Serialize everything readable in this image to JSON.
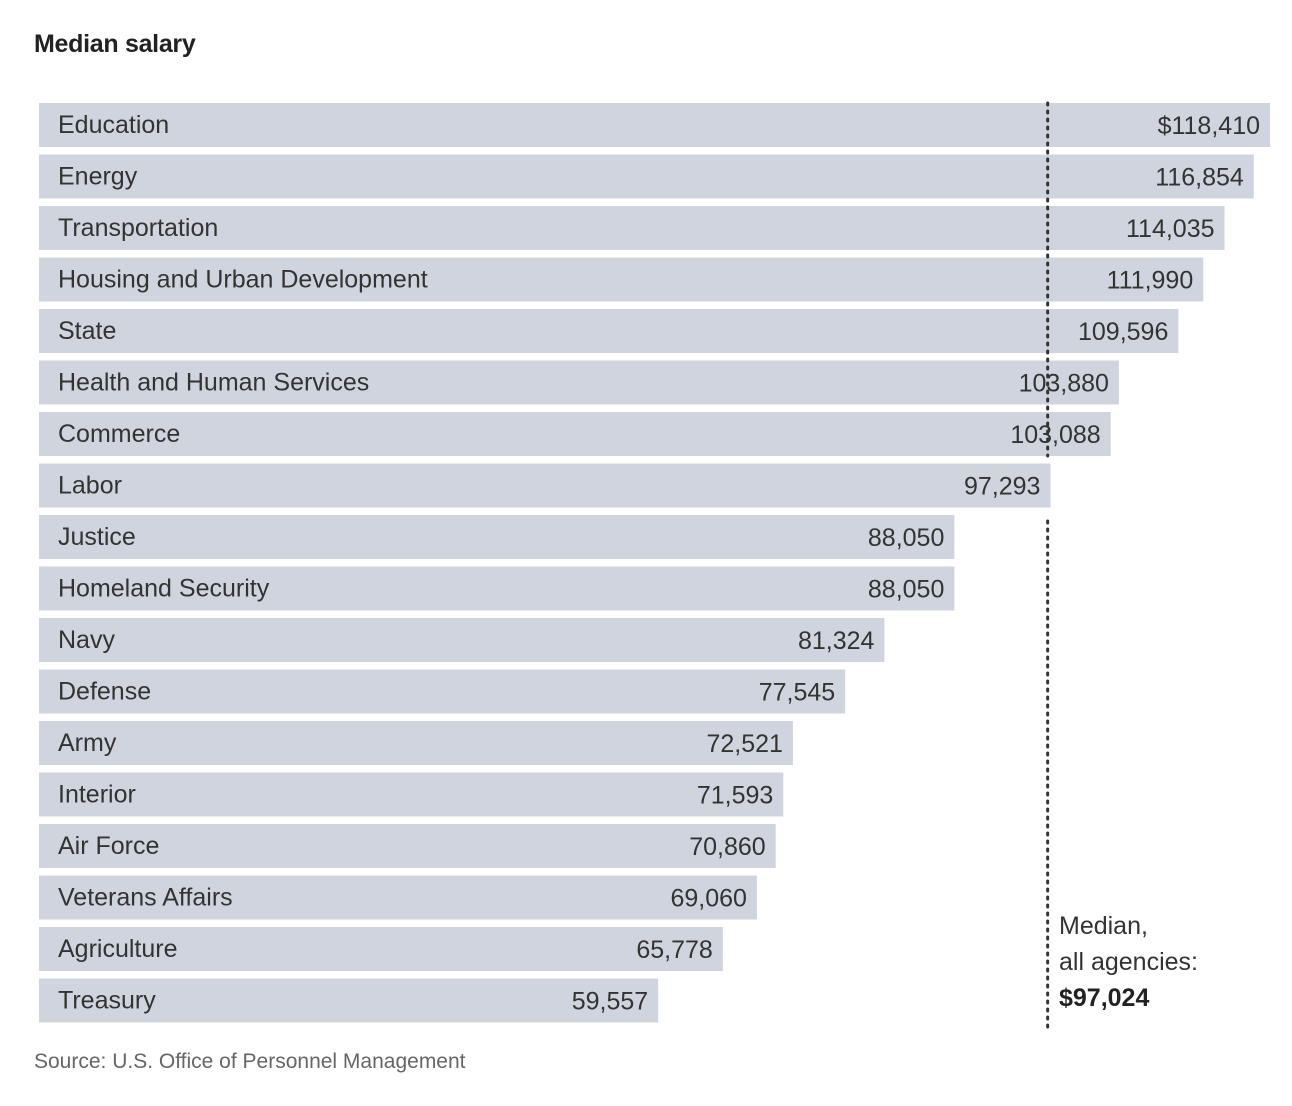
{
  "title": "Median salary",
  "source": "Source: U.S. Office of Personnel Management",
  "median_note": {
    "line1": "Median,",
    "line2": "all agencies:",
    "value_label": "$97,024"
  },
  "colors": {
    "bar": "#d0d4de",
    "text": "#333333"
  },
  "chart_data": {
    "type": "bar",
    "orientation": "horizontal",
    "categories": [
      "Education",
      "Energy",
      "Transportation",
      "Housing and Urban Development",
      "State",
      "Health and Human Services",
      "Commerce",
      "Labor",
      "Justice",
      "Homeland Security",
      "Navy",
      "Defense",
      "Army",
      "Interior",
      "Air Force",
      "Veterans Affairs",
      "Agriculture",
      "Treasury"
    ],
    "values": [
      118410,
      116854,
      114035,
      111990,
      109596,
      103880,
      103088,
      97293,
      88050,
      88050,
      81324,
      77545,
      72521,
      71593,
      70860,
      69060,
      65778,
      59557
    ],
    "value_labels": [
      "$118,410",
      "116,854",
      "114,035",
      "111,990",
      "109,596",
      "103,880",
      "103,088",
      "97,293",
      "88,050",
      "88,050",
      "81,324",
      "77,545",
      "72,521",
      "71,593",
      "70,860",
      "69,060",
      "65,778",
      "59,557"
    ],
    "reference_line": {
      "value": 97024,
      "style": "dotted"
    },
    "xlim": [
      0,
      118410
    ],
    "grid": false,
    "legend": "none"
  }
}
